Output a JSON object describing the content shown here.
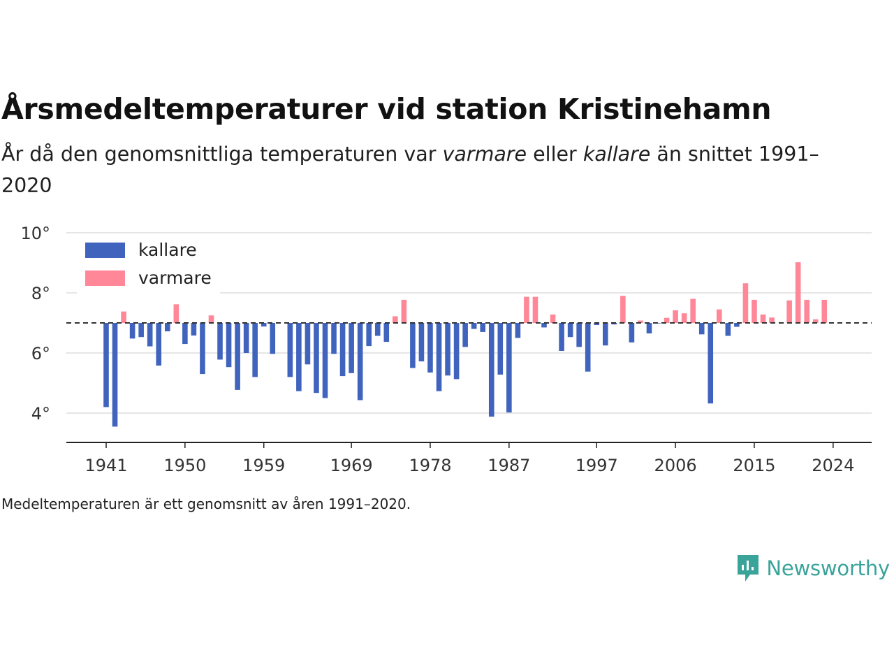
{
  "header": {
    "title": "Årsmedeltemperaturer vid station Kristinehamn",
    "subtitle_pre": "År då den genomsnittliga temperaturen var ",
    "subtitle_em1": "varmare",
    "subtitle_mid": " eller ",
    "subtitle_em2": "kallare",
    "subtitle_post": " än snittet 1991–2020"
  },
  "footer": {
    "note": "Medeltemperaturen är ett genomsnitt av åren 1991–2020.",
    "brand": "Newsworthy"
  },
  "colors": {
    "cold": "#4064be",
    "warm": "#ff8797",
    "reference": "#333333",
    "grid": "#dddddd",
    "brand": "#3aa39a"
  },
  "chart_data": {
    "type": "bar",
    "baseline": 7.0,
    "ylim": [
      3.0,
      10.0
    ],
    "y_ticks": [
      4,
      6,
      8,
      10
    ],
    "y_tick_labels": [
      "4°",
      "6°",
      "8°",
      "10°"
    ],
    "x_ticks": [
      1941,
      1950,
      1959,
      1969,
      1978,
      1987,
      1997,
      2006,
      2015,
      2024
    ],
    "x_tick_labels": [
      "1941",
      "1950",
      "1959",
      "1969",
      "1978",
      "1987",
      "1997",
      "2006",
      "2015",
      "2024"
    ],
    "legend": [
      {
        "key": "cold",
        "label": "kallare"
      },
      {
        "key": "warm",
        "label": "varmare"
      }
    ],
    "legend_position": "top-left",
    "grid": true,
    "years": [
      1941,
      1942,
      1943,
      1944,
      1945,
      1946,
      1947,
      1948,
      1949,
      1950,
      1951,
      1952,
      1953,
      1954,
      1955,
      1956,
      1957,
      1958,
      1959,
      1960,
      1961,
      1962,
      1963,
      1964,
      1965,
      1966,
      1967,
      1968,
      1969,
      1970,
      1971,
      1972,
      1973,
      1974,
      1975,
      1976,
      1977,
      1978,
      1979,
      1980,
      1981,
      1982,
      1983,
      1984,
      1985,
      1986,
      1987,
      1988,
      1989,
      1990,
      1991,
      1992,
      1993,
      1994,
      1995,
      1996,
      1997,
      1998,
      1999,
      2000,
      2001,
      2002,
      2003,
      2004,
      2005,
      2006,
      2007,
      2008,
      2009,
      2010,
      2011,
      2012,
      2013,
      2014,
      2015,
      2016,
      2017,
      2018,
      2019,
      2020,
      2021,
      2022,
      2023,
      2024
    ],
    "values": [
      4.2,
      3.55,
      7.38,
      6.48,
      6.53,
      6.22,
      5.58,
      6.72,
      7.62,
      6.3,
      6.58,
      5.3,
      7.25,
      5.78,
      5.53,
      4.77,
      6.0,
      5.2,
      6.88,
      5.97,
      null,
      5.2,
      4.73,
      5.62,
      4.67,
      4.5,
      5.97,
      5.23,
      5.33,
      4.43,
      6.23,
      6.57,
      6.37,
      7.22,
      7.77,
      5.5,
      5.72,
      5.35,
      4.73,
      5.25,
      5.13,
      6.2,
      6.8,
      6.7,
      3.88,
      5.28,
      4.02,
      6.5,
      7.87,
      7.87,
      6.85,
      7.28,
      6.07,
      6.53,
      6.2,
      5.38,
      6.93,
      6.25,
      6.95,
      7.9,
      6.35,
      7.08,
      6.65,
      6.98,
      7.17,
      7.42,
      7.32,
      7.8,
      6.62,
      4.32,
      7.45,
      6.57,
      6.87,
      8.32,
      7.77,
      7.28,
      7.18,
      null,
      7.75,
      9.02,
      7.77,
      7.12,
      7.77,
      null
    ]
  }
}
